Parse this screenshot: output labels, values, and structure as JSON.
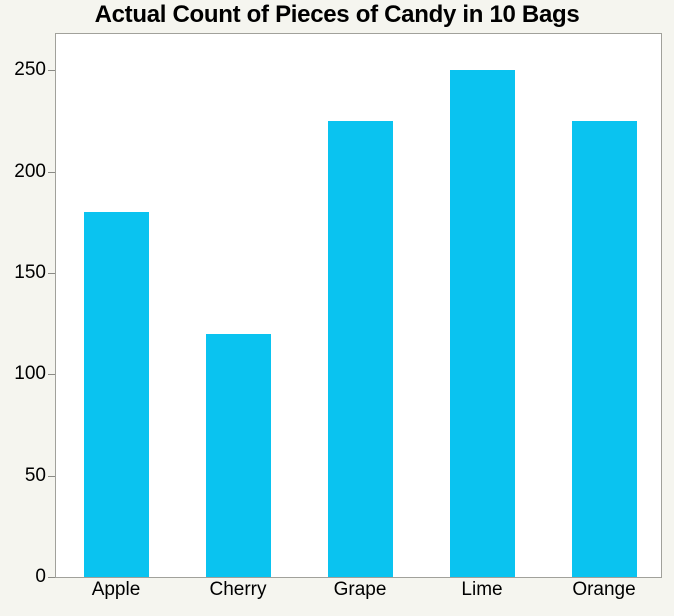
{
  "page": {
    "background_color": "#F5F5EF",
    "plot_background_color": "#FFFFFF",
    "plot_border_color": "#A1A19B",
    "tick_mark_color": "#8A8A85",
    "text_color": "#000000"
  },
  "chart_data": {
    "type": "bar",
    "title": "Actual Count of Pieces of Candy in 10 Bags",
    "xlabel": "",
    "ylabel": "",
    "categories": [
      "Apple",
      "Cherry",
      "Grape",
      "Lime",
      "Orange"
    ],
    "values": [
      180,
      120,
      225,
      250,
      225
    ],
    "y_ticks": [
      0,
      50,
      100,
      150,
      200,
      250
    ],
    "ylim": [
      0,
      268
    ],
    "grid": false,
    "legend": "none",
    "bar_color": "#0AC3F0"
  }
}
